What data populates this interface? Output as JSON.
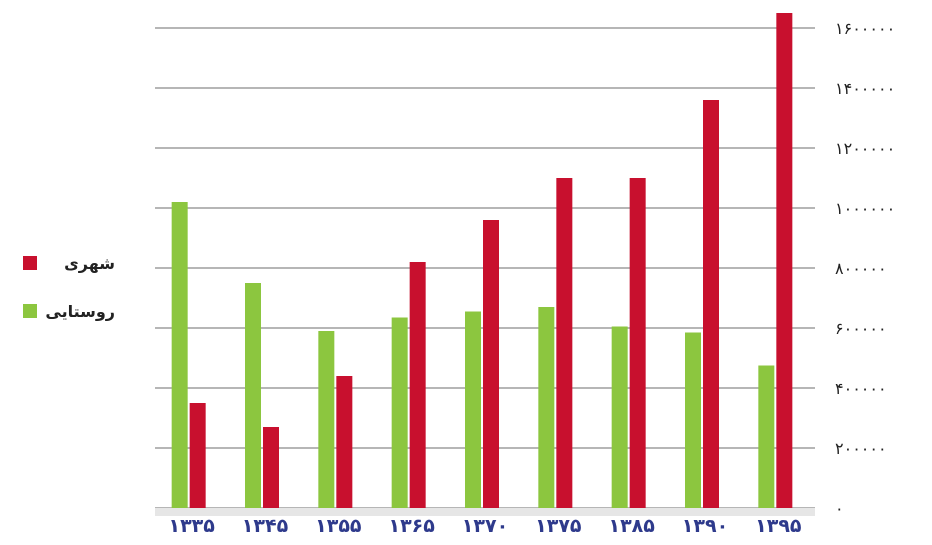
{
  "chart_data": {
    "type": "bar",
    "categories": [
      "۱۳۳۵",
      "۱۳۴۵",
      "۱۳۵۵",
      "۱۳۶۵",
      "۱۳۷۰",
      "۱۳۷۵",
      "۱۳۸۵",
      "۱۳۹۰",
      "۱۳۹۵"
    ],
    "series": [
      {
        "name": "روستایی",
        "color": "#8cc63f",
        "values": [
          1020000,
          750000,
          590000,
          635000,
          655000,
          670000,
          605000,
          585000,
          475000
        ]
      },
      {
        "name": "شهری",
        "color": "#c8102e",
        "values": [
          350000,
          270000,
          440000,
          820000,
          960000,
          1100000,
          1100000,
          1360000,
          1650000
        ]
      }
    ],
    "ylim": [
      0,
      1600000
    ],
    "yticks": [
      {
        "value": 0,
        "label": "۰"
      },
      {
        "value": 200000,
        "label": "۲۰۰۰۰۰"
      },
      {
        "value": 400000,
        "label": "۴۰۰۰۰۰"
      },
      {
        "value": 600000,
        "label": "۶۰۰۰۰۰"
      },
      {
        "value": 800000,
        "label": "۸۰۰۰۰۰"
      },
      {
        "value": 1000000,
        "label": "۱۰۰۰۰۰۰"
      },
      {
        "value": 1200000,
        "label": "۱۲۰۰۰۰۰"
      },
      {
        "value": 1400000,
        "label": "۱۴۰۰۰۰۰"
      },
      {
        "value": 1600000,
        "label": "۱۶۰۰۰۰۰"
      }
    ],
    "yaxis_position": "right",
    "grid": true,
    "legend": {
      "position": "left",
      "items": [
        {
          "label": "شهری",
          "color": "#c8102e"
        },
        {
          "label": "روستایی",
          "color": "#8cc63f"
        }
      ]
    },
    "title": "",
    "xlabel": "",
    "ylabel": ""
  }
}
